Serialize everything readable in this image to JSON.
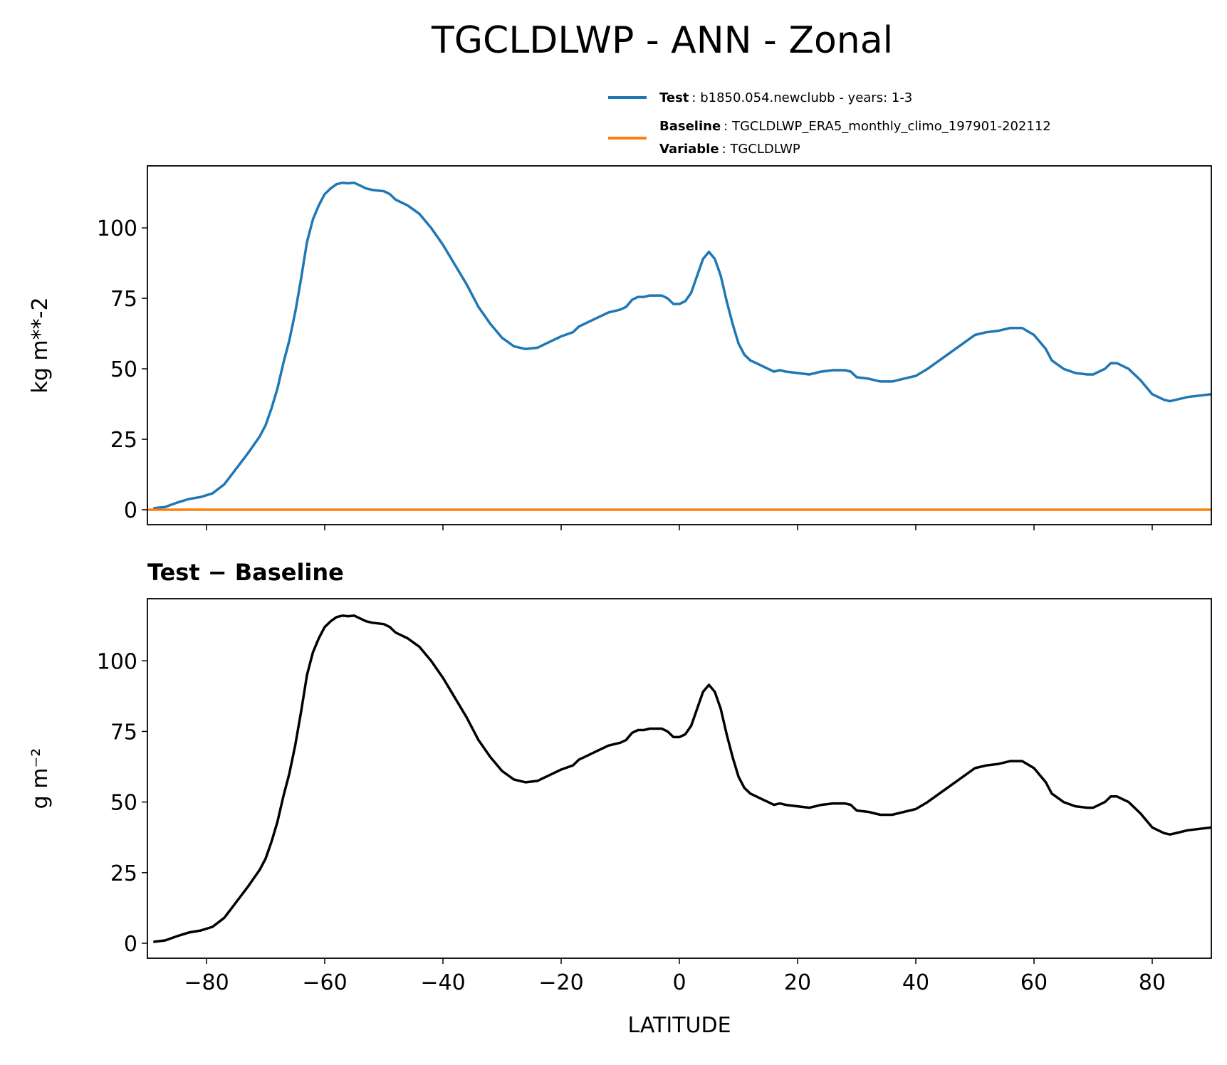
{
  "chart_data": [
    {
      "type": "line",
      "title": "TGCLDLWP - ANN - Zonal",
      "ylabel": "kg m**-2",
      "x": [
        -89,
        -87,
        -85,
        -83,
        -81,
        -79,
        -77,
        -75,
        -73,
        -71,
        -70,
        -69,
        -68,
        -67,
        -66,
        -65,
        -64,
        -63,
        -62,
        -61,
        -60,
        -59,
        -58,
        -57,
        -56,
        -55,
        -54,
        -53,
        -52,
        -50,
        -49,
        -48,
        -46,
        -44,
        -42,
        -40,
        -38,
        -36,
        -34,
        -32,
        -30,
        -28,
        -26,
        -24,
        -22,
        -20,
        -18,
        -17,
        -16,
        -14,
        -12,
        -10,
        -9,
        -8,
        -7,
        -6,
        -5,
        -3,
        -2,
        -1,
        0,
        1,
        2,
        3,
        4,
        5,
        6,
        7,
        8,
        9,
        10,
        11,
        12,
        13,
        14,
        15,
        16,
        17,
        18,
        20,
        22,
        24,
        26,
        28,
        29,
        30,
        32,
        34,
        36,
        38,
        40,
        42,
        44,
        46,
        48,
        50,
        52,
        54,
        56,
        58,
        60,
        62,
        63,
        65,
        67,
        69,
        70,
        72,
        73,
        74,
        76,
        78,
        80,
        82,
        83,
        84,
        86,
        88,
        90
      ],
      "series": [
        {
          "name": "Test",
          "description": ": b1850.054.newclubb - years: 1-3",
          "color": "#1f77b4",
          "values": [
            0.5,
            1,
            2.5,
            3.8,
            4.5,
            5.8,
            9,
            14.5,
            20,
            26,
            30,
            36,
            43,
            52,
            60,
            70,
            82,
            95,
            103,
            108,
            112,
            114,
            115.5,
            116,
            115.8,
            116,
            115,
            114,
            113.5,
            113,
            112,
            110,
            108,
            105,
            100,
            94,
            87,
            80,
            72,
            66,
            61,
            58,
            57,
            57.5,
            59.5,
            61.5,
            63,
            65,
            66,
            68,
            70,
            71,
            72,
            74.5,
            75.5,
            75.5,
            76,
            76,
            75,
            73,
            73,
            74,
            77,
            83,
            89,
            91.5,
            89,
            83,
            74,
            66,
            59,
            55,
            53,
            52,
            51,
            50,
            49,
            49.5,
            49,
            48.5,
            48,
            49,
            49.5,
            49.5,
            49,
            47,
            46.5,
            45.5,
            45.5,
            46.5,
            47.5,
            50,
            53,
            56,
            59,
            62,
            63,
            63.5,
            64.5,
            64.5,
            62,
            57,
            53,
            50,
            48.5,
            48,
            48,
            50,
            52,
            52,
            50,
            46,
            41,
            39,
            38.5,
            39,
            40,
            40.5,
            41
          ]
        },
        {
          "name": "Baseline",
          "description": ": TGCLDLWP_ERA5_monthly_climo_197901-202112",
          "color": "#ff7f0e",
          "x": [
            -90,
            90
          ],
          "values": [
            0,
            0
          ]
        }
      ],
      "legend_note": {
        "name": "Variable",
        "text": ": TGCLDLWP"
      },
      "xlim": [
        -90,
        90
      ],
      "ylim": [
        -5.3,
        122
      ],
      "xticks": [
        -80,
        -60,
        -40,
        -20,
        0,
        20,
        40,
        60,
        80
      ],
      "yticks": [
        0,
        25,
        50,
        75,
        100
      ]
    },
    {
      "type": "line",
      "title": "Test − Baseline",
      "ylabel": "g m⁻²",
      "xlabel": "LATITUDE",
      "x": [
        -89,
        -87,
        -85,
        -83,
        -81,
        -79,
        -77,
        -75,
        -73,
        -71,
        -70,
        -69,
        -68,
        -67,
        -66,
        -65,
        -64,
        -63,
        -62,
        -61,
        -60,
        -59,
        -58,
        -57,
        -56,
        -55,
        -54,
        -53,
        -52,
        -50,
        -49,
        -48,
        -46,
        -44,
        -42,
        -40,
        -38,
        -36,
        -34,
        -32,
        -30,
        -28,
        -26,
        -24,
        -22,
        -20,
        -18,
        -17,
        -16,
        -14,
        -12,
        -10,
        -9,
        -8,
        -7,
        -6,
        -5,
        -3,
        -2,
        -1,
        0,
        1,
        2,
        3,
        4,
        5,
        6,
        7,
        8,
        9,
        10,
        11,
        12,
        13,
        14,
        15,
        16,
        17,
        18,
        20,
        22,
        24,
        26,
        28,
        29,
        30,
        32,
        34,
        36,
        38,
        40,
        42,
        44,
        46,
        48,
        50,
        52,
        54,
        56,
        58,
        60,
        62,
        63,
        65,
        67,
        69,
        70,
        72,
        73,
        74,
        76,
        78,
        80,
        82,
        83,
        84,
        86,
        88,
        90
      ],
      "series": [
        {
          "color": "#000000",
          "values": [
            0.5,
            1,
            2.5,
            3.8,
            4.5,
            5.8,
            9,
            14.5,
            20,
            26,
            30,
            36,
            43,
            52,
            60,
            70,
            82,
            95,
            103,
            108,
            112,
            114,
            115.5,
            116,
            115.8,
            116,
            115,
            114,
            113.5,
            113,
            112,
            110,
            108,
            105,
            100,
            94,
            87,
            80,
            72,
            66,
            61,
            58,
            57,
            57.5,
            59.5,
            61.5,
            63,
            65,
            66,
            68,
            70,
            71,
            72,
            74.5,
            75.5,
            75.5,
            76,
            76,
            75,
            73,
            73,
            74,
            77,
            83,
            89,
            91.5,
            89,
            83,
            74,
            66,
            59,
            55,
            53,
            52,
            51,
            50,
            49,
            49.5,
            49,
            48.5,
            48,
            49,
            49.5,
            49.5,
            49,
            47,
            46.5,
            45.5,
            45.5,
            46.5,
            47.5,
            50,
            53,
            56,
            59,
            62,
            63,
            63.5,
            64.5,
            64.5,
            62,
            57,
            53,
            50,
            48.5,
            48,
            48,
            50,
            52,
            52,
            50,
            46,
            41,
            39,
            38.5,
            39,
            40,
            40.5,
            41
          ]
        }
      ],
      "xlim": [
        -90,
        90
      ],
      "ylim": [
        -5.3,
        122
      ],
      "xticks": [
        {
          "value": -80,
          "label": "−80"
        },
        {
          "value": -60,
          "label": "−60"
        },
        {
          "value": -40,
          "label": "−40"
        },
        {
          "value": -20,
          "label": "−20"
        },
        0,
        20,
        40,
        60,
        80
      ],
      "yticks": [
        0,
        25,
        50,
        75,
        100
      ]
    }
  ]
}
